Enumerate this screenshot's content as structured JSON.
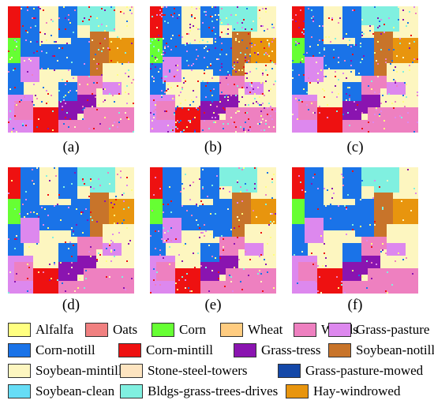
{
  "panels": [
    {
      "id": "a",
      "label": "(a)",
      "noise": 0.3
    },
    {
      "id": "b",
      "label": "(b)",
      "noise": 0.55
    },
    {
      "id": "c",
      "label": "(c)",
      "noise": 0.3
    },
    {
      "id": "d",
      "label": "(d)",
      "noise": 0.2
    },
    {
      "id": "e",
      "label": "(e)",
      "noise": 0.22
    },
    {
      "id": "f",
      "label": "(f)",
      "noise": 0.12
    }
  ],
  "legend": [
    {
      "label": "Alfalfa",
      "color": "#ffff80"
    },
    {
      "label": "Oats",
      "color": "#f08080"
    },
    {
      "label": "Corn",
      "color": "#66ff33"
    },
    {
      "label": "Wheat",
      "color": "#ffcc80"
    },
    {
      "label": "Woods",
      "color": "#ee80c0"
    },
    {
      "label": "Grass-pasture",
      "color": "#dd88ee"
    },
    {
      "label": "Corn-notill",
      "color": "#1a73e8"
    },
    {
      "label": "Corn-mintill",
      "color": "#ee1111"
    },
    {
      "label": "Grass-tress",
      "color": "#8a14b0"
    },
    {
      "label": "Soybean-notill",
      "color": "#c8742a"
    },
    {
      "label": "Soybean-mintill",
      "color": "#fdf6c0"
    },
    {
      "label": "Stone-steel-towers",
      "color": "#fde4c0"
    },
    {
      "label": "Grass-pasture-mowed",
      "color": "#1448a8"
    },
    {
      "label": "Soybean-clean",
      "color": "#66ddf6"
    },
    {
      "label": "Bldgs-grass-trees-drives",
      "color": "#80f0e0"
    },
    {
      "label": "Hay-windrowed",
      "color": "#e8950e"
    }
  ]
}
